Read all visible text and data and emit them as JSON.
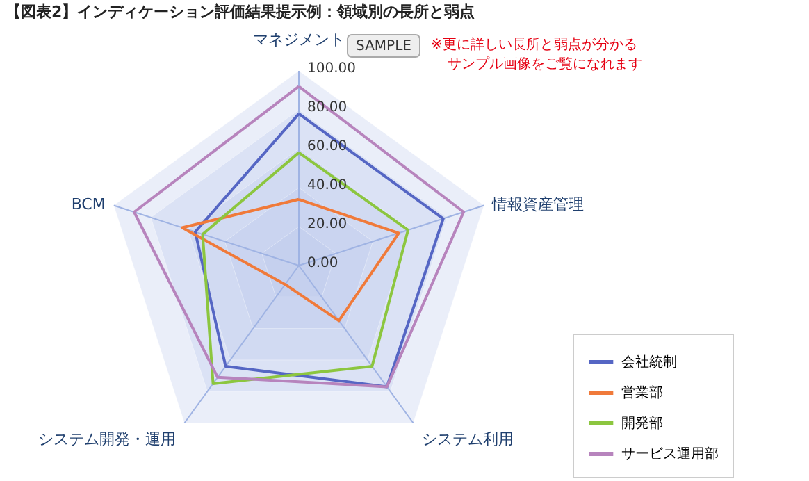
{
  "chart_data": {
    "type": "radar",
    "title": "【図表2】インディケーション評価結果提示例：領域別の長所と弱点",
    "categories": [
      "マネジメント",
      "情報資産管理",
      "システム利用",
      "システム開発・運用",
      "BCM"
    ],
    "series": [
      {
        "name": "会社統制",
        "color": "#5566c4",
        "values": [
          78,
          78,
          77,
          64,
          56
        ]
      },
      {
        "name": "営業部",
        "color": "#f07a3a",
        "values": [
          34,
          54,
          35,
          12,
          63
        ]
      },
      {
        "name": "開発部",
        "color": "#8cc63f",
        "values": [
          58,
          59,
          64,
          75,
          52
        ]
      },
      {
        "name": "サービス運用部",
        "color": "#b784bd",
        "values": [
          92,
          89,
          77,
          71,
          89
        ]
      }
    ],
    "ylim": [
      0,
      100
    ],
    "yticks": [
      {
        "value": 0,
        "label": "0.00"
      },
      {
        "value": 20,
        "label": "20.00"
      },
      {
        "value": 40,
        "label": "40.00"
      },
      {
        "value": 60,
        "label": "60.00"
      },
      {
        "value": 80,
        "label": "80.00"
      },
      {
        "value": 100,
        "label": "100.00"
      }
    ],
    "annotations": [
      "SAMPLE",
      "※更に詳しい長所と弱点が分かる",
      "サンプル画像をご覧になれます"
    ],
    "legend": "bottom right",
    "grid": true
  }
}
